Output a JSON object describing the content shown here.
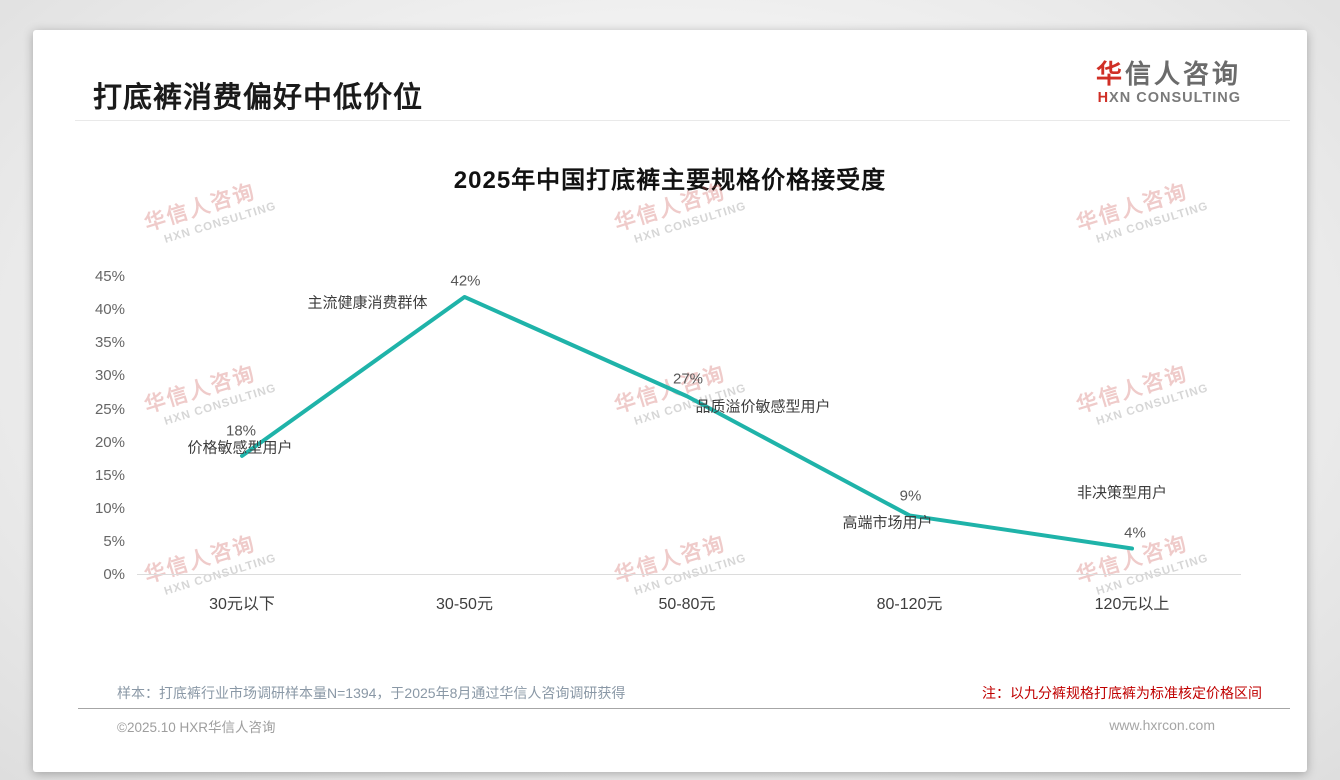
{
  "page": {
    "title": "打底裤消费偏好中低价位",
    "logo": {
      "cn_first": "华",
      "cn_rest": "信人咨询",
      "en_first": "H",
      "en_rest": "XN CONSULTING"
    },
    "watermark": {
      "cn": "华信人咨询",
      "en": "HXN CONSULTING"
    },
    "footer": {
      "sample_note": "样本：打底裤行业市场调研样本量N=1394，于2025年8月通过华信人咨询调研获得",
      "red_note": "注：以九分裤规格打底裤为标准核定价格区间",
      "copyright": "©2025.10 HXR华信人咨询",
      "website": "www.hxrcon.com"
    }
  },
  "chart_data": {
    "type": "line",
    "title": "2025年中国打底裤主要规格价格接受度",
    "categories": [
      "30元以下",
      "30-50元",
      "50-80元",
      "80-120元",
      "120元以上"
    ],
    "values": [
      18,
      42,
      27,
      9,
      4
    ],
    "value_labels": [
      "18%",
      "42%",
      "27%",
      "9%",
      "4%"
    ],
    "annotations": [
      "价格敏感型用户",
      "主流健康消费群体",
      "品质溢价敏感型用户",
      "高端市场用户",
      "非决策型用户"
    ],
    "yticks": [
      "45%",
      "40%",
      "35%",
      "30%",
      "25%",
      "20%",
      "15%",
      "10%",
      "5%",
      "0%"
    ],
    "ytick_values": [
      45,
      40,
      35,
      30,
      25,
      20,
      15,
      10,
      5,
      0
    ],
    "xlabel": "",
    "ylabel": "",
    "ylim": [
      0,
      45
    ],
    "grid": false,
    "legend": false,
    "line_color": "#1fb3a9"
  }
}
